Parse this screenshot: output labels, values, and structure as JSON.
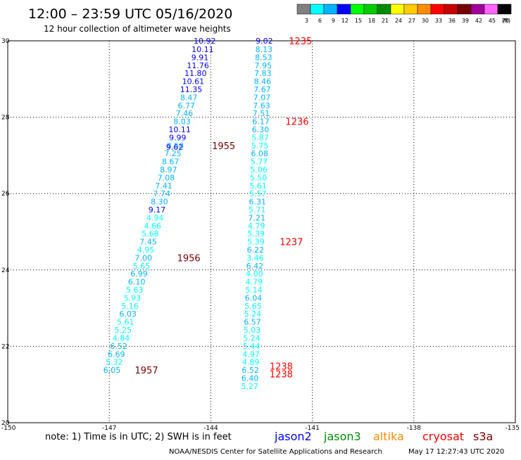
{
  "header": {
    "title": "12:00 – 23:59 UTC 05/16/2020",
    "subtitle": "12 hour collection of altimeter wave heights"
  },
  "legend": {
    "unit": "(ft)",
    "bins": [
      {
        "label": "3",
        "color": "#808080"
      },
      {
        "label": "6",
        "color": "#00ffff"
      },
      {
        "label": "9",
        "color": "#00b4ff"
      },
      {
        "label": "12",
        "color": "#0000ff"
      },
      {
        "label": "15",
        "color": "#00ff00"
      },
      {
        "label": "18",
        "color": "#00cc00"
      },
      {
        "label": "21",
        "color": "#008c00"
      },
      {
        "label": "24",
        "color": "#ffff00"
      },
      {
        "label": "27",
        "color": "#ffcc00"
      },
      {
        "label": "30",
        "color": "#ff8c00"
      },
      {
        "label": "33",
        "color": "#ff0000"
      },
      {
        "label": "36",
        "color": "#c80000"
      },
      {
        "label": "39",
        "color": "#780000"
      },
      {
        "label": "42",
        "color": "#a000a0"
      },
      {
        "label": "45",
        "color": "#ff64ff"
      },
      {
        "label": "70",
        "color": "#000000"
      }
    ]
  },
  "chart_data": {
    "type": "scatter",
    "xlim": [
      -150,
      -135
    ],
    "ylim": [
      20,
      30
    ],
    "x_ticks": [
      "-150",
      "-147",
      "-144",
      "-141",
      "-138",
      "-135"
    ],
    "y_ticks": [
      "20",
      "22",
      "24",
      "26",
      "28",
      "30"
    ],
    "grid": true,
    "tracks": [
      {
        "name": "track-west",
        "points": [
          {
            "lon": -144.18,
            "lat": 30.0,
            "value": "10.92",
            "color": "#0000ff"
          },
          {
            "lon": -144.24,
            "lat": 29.78,
            "value": "10.11",
            "color": "#0000ff"
          },
          {
            "lon": -144.32,
            "lat": 29.57,
            "value": "9.91",
            "color": "#0000ff"
          },
          {
            "lon": -144.38,
            "lat": 29.36,
            "value": "11.76",
            "color": "#0000ff"
          },
          {
            "lon": -144.45,
            "lat": 29.15,
            "value": "11.80",
            "color": "#0000ff"
          },
          {
            "lon": -144.52,
            "lat": 28.94,
            "value": "10.61",
            "color": "#0000ff"
          },
          {
            "lon": -144.58,
            "lat": 28.73,
            "value": "11.35",
            "color": "#0000ff"
          },
          {
            "lon": -144.65,
            "lat": 28.52,
            "value": "8.47",
            "color": "#00b4ff"
          },
          {
            "lon": -144.72,
            "lat": 28.31,
            "value": "6.77",
            "color": "#00b4ff"
          },
          {
            "lon": -144.78,
            "lat": 28.1,
            "value": "7.46",
            "color": "#00b4ff"
          },
          {
            "lon": -144.85,
            "lat": 27.89,
            "value": "8.03",
            "color": "#00b4ff"
          },
          {
            "lon": -144.92,
            "lat": 27.68,
            "value": "10.11",
            "color": "#0000ff"
          },
          {
            "lon": -144.98,
            "lat": 27.47,
            "value": "9.99",
            "color": "#0000ff"
          },
          {
            "lon": -145.05,
            "lat": 27.26,
            "value": "8.58",
            "color": "#00b4ff"
          },
          {
            "lon": -145.07,
            "lat": 27.22,
            "value": "9.62",
            "color": "#0000ff"
          },
          {
            "lon": -145.12,
            "lat": 27.05,
            "value": "7.25",
            "color": "#00b4ff"
          },
          {
            "lon": -145.19,
            "lat": 26.84,
            "value": "8.67",
            "color": "#00b4ff"
          },
          {
            "lon": -145.25,
            "lat": 26.63,
            "value": "8.97",
            "color": "#00b4ff"
          },
          {
            "lon": -145.32,
            "lat": 26.42,
            "value": "7.08",
            "color": "#00b4ff"
          },
          {
            "lon": -145.39,
            "lat": 26.21,
            "value": "7.41",
            "color": "#00b4ff"
          },
          {
            "lon": -145.45,
            "lat": 26.0,
            "value": "7.74",
            "color": "#00b4ff"
          },
          {
            "lon": -145.52,
            "lat": 25.79,
            "value": "8.30",
            "color": "#00b4ff"
          },
          {
            "lon": -145.59,
            "lat": 25.58,
            "value": "9.17",
            "color": "#0000ff"
          },
          {
            "lon": -145.65,
            "lat": 25.37,
            "value": "4.94",
            "color": "#00ffff"
          },
          {
            "lon": -145.72,
            "lat": 25.16,
            "value": "4.66",
            "color": "#00ffff"
          },
          {
            "lon": -145.79,
            "lat": 24.95,
            "value": "5.68",
            "color": "#00ffff"
          },
          {
            "lon": -145.85,
            "lat": 24.74,
            "value": "7.45",
            "color": "#00b4ff"
          },
          {
            "lon": -145.92,
            "lat": 24.53,
            "value": "4.95",
            "color": "#00ffff"
          },
          {
            "lon": -145.99,
            "lat": 24.32,
            "value": "7.00",
            "color": "#00b4ff"
          },
          {
            "lon": -146.05,
            "lat": 24.11,
            "value": "5.65",
            "color": "#00ffff"
          },
          {
            "lon": -146.12,
            "lat": 23.9,
            "value": "6.99",
            "color": "#00b4ff"
          },
          {
            "lon": -146.19,
            "lat": 23.69,
            "value": "6.10",
            "color": "#00b4ff"
          },
          {
            "lon": -146.25,
            "lat": 23.48,
            "value": "5.63",
            "color": "#00ffff"
          },
          {
            "lon": -146.32,
            "lat": 23.27,
            "value": "5.93",
            "color": "#00ffff"
          },
          {
            "lon": -146.39,
            "lat": 23.06,
            "value": "5.16",
            "color": "#00ffff"
          },
          {
            "lon": -146.45,
            "lat": 22.85,
            "value": "6.03",
            "color": "#00b4ff"
          },
          {
            "lon": -146.52,
            "lat": 22.64,
            "value": "5.61",
            "color": "#00ffff"
          },
          {
            "lon": -146.59,
            "lat": 22.43,
            "value": "5.25",
            "color": "#00ffff"
          },
          {
            "lon": -146.65,
            "lat": 22.22,
            "value": "4.84",
            "color": "#00ffff"
          },
          {
            "lon": -146.72,
            "lat": 22.01,
            "value": "6.52",
            "color": "#00b4ff"
          },
          {
            "lon": -146.79,
            "lat": 21.8,
            "value": "6.69",
            "color": "#00b4ff"
          },
          {
            "lon": -146.85,
            "lat": 21.59,
            "value": "5.32",
            "color": "#00ffff"
          },
          {
            "lon": -146.92,
            "lat": 21.38,
            "value": "6.05",
            "color": "#00b4ff"
          }
        ]
      },
      {
        "name": "track-east",
        "points": [
          {
            "lon": -142.42,
            "lat": 30.0,
            "value": "9.02",
            "color": "#0000ff"
          },
          {
            "lon": -142.43,
            "lat": 29.78,
            "value": "8.13",
            "color": "#00b4ff"
          },
          {
            "lon": -142.44,
            "lat": 29.57,
            "value": "8.53",
            "color": "#00b4ff"
          },
          {
            "lon": -142.45,
            "lat": 29.36,
            "value": "7.95",
            "color": "#00b4ff"
          },
          {
            "lon": -142.46,
            "lat": 29.15,
            "value": "7.83",
            "color": "#00b4ff"
          },
          {
            "lon": -142.47,
            "lat": 28.94,
            "value": "8.46",
            "color": "#00b4ff"
          },
          {
            "lon": -142.48,
            "lat": 28.73,
            "value": "7.67",
            "color": "#00b4ff"
          },
          {
            "lon": -142.49,
            "lat": 28.52,
            "value": "7.07",
            "color": "#00b4ff"
          },
          {
            "lon": -142.5,
            "lat": 28.31,
            "value": "7.63",
            "color": "#00b4ff"
          },
          {
            "lon": -142.51,
            "lat": 28.1,
            "value": "7.51",
            "color": "#00b4ff"
          },
          {
            "lon": -142.52,
            "lat": 27.89,
            "value": "6.17",
            "color": "#00b4ff"
          },
          {
            "lon": -142.53,
            "lat": 27.68,
            "value": "6.30",
            "color": "#00b4ff"
          },
          {
            "lon": -142.54,
            "lat": 27.47,
            "value": "5.87",
            "color": "#00ffff"
          },
          {
            "lon": -142.55,
            "lat": 27.26,
            "value": "5.75",
            "color": "#00ffff"
          },
          {
            "lon": -142.56,
            "lat": 27.05,
            "value": "6.08",
            "color": "#00b4ff"
          },
          {
            "lon": -142.57,
            "lat": 26.84,
            "value": "5.77",
            "color": "#00ffff"
          },
          {
            "lon": -142.58,
            "lat": 26.63,
            "value": "5.06",
            "color": "#00ffff"
          },
          {
            "lon": -142.59,
            "lat": 26.42,
            "value": "5.50",
            "color": "#00ffff"
          },
          {
            "lon": -142.6,
            "lat": 26.21,
            "value": "5.61",
            "color": "#00ffff"
          },
          {
            "lon": -142.61,
            "lat": 26.0,
            "value": "5.57",
            "color": "#00ffff"
          },
          {
            "lon": -142.62,
            "lat": 25.79,
            "value": "6.31",
            "color": "#00b4ff"
          },
          {
            "lon": -142.63,
            "lat": 25.58,
            "value": "5.71",
            "color": "#00ffff"
          },
          {
            "lon": -142.64,
            "lat": 25.37,
            "value": "7.21",
            "color": "#00b4ff"
          },
          {
            "lon": -142.65,
            "lat": 25.16,
            "value": "4.79",
            "color": "#00ffff"
          },
          {
            "lon": -142.66,
            "lat": 24.95,
            "value": "5.39",
            "color": "#00ffff"
          },
          {
            "lon": -142.67,
            "lat": 24.74,
            "value": "5.39",
            "color": "#00ffff"
          },
          {
            "lon": -142.68,
            "lat": 24.53,
            "value": "6.22",
            "color": "#00b4ff"
          },
          {
            "lon": -142.69,
            "lat": 24.32,
            "value": "3.46",
            "color": "#00ffff"
          },
          {
            "lon": -142.7,
            "lat": 24.11,
            "value": "6.42",
            "color": "#00b4ff"
          },
          {
            "lon": -142.71,
            "lat": 23.9,
            "value": "4.00",
            "color": "#00ffff"
          },
          {
            "lon": -142.72,
            "lat": 23.69,
            "value": "4.79",
            "color": "#00ffff"
          },
          {
            "lon": -142.73,
            "lat": 23.48,
            "value": "5.14",
            "color": "#00ffff"
          },
          {
            "lon": -142.74,
            "lat": 23.27,
            "value": "6.04",
            "color": "#00b4ff"
          },
          {
            "lon": -142.75,
            "lat": 23.06,
            "value": "5.65",
            "color": "#00ffff"
          },
          {
            "lon": -142.76,
            "lat": 22.85,
            "value": "5.24",
            "color": "#00ffff"
          },
          {
            "lon": -142.77,
            "lat": 22.64,
            "value": "6.57",
            "color": "#00b4ff"
          },
          {
            "lon": -142.78,
            "lat": 22.43,
            "value": "5.03",
            "color": "#00ffff"
          },
          {
            "lon": -142.79,
            "lat": 22.22,
            "value": "5.24",
            "color": "#00ffff"
          },
          {
            "lon": -142.8,
            "lat": 22.01,
            "value": "5.44",
            "color": "#00ffff"
          },
          {
            "lon": -142.81,
            "lat": 21.8,
            "value": "4.97",
            "color": "#00ffff"
          },
          {
            "lon": -142.82,
            "lat": 21.59,
            "value": "4.89",
            "color": "#00ffff"
          },
          {
            "lon": -142.83,
            "lat": 21.38,
            "value": "6.52",
            "color": "#00b4ff"
          },
          {
            "lon": -142.84,
            "lat": 21.17,
            "value": "6.40",
            "color": "#00b4ff"
          },
          {
            "lon": -142.85,
            "lat": 20.96,
            "value": "5.27",
            "color": "#00ffff"
          }
        ]
      }
    ],
    "time_labels": [
      {
        "text": "1235",
        "lon": -141.35,
        "lat": 30.0,
        "color": "#ff0000"
      },
      {
        "text": "1236",
        "lon": -141.45,
        "lat": 27.89,
        "color": "#ff0000"
      },
      {
        "text": "1237",
        "lon": -141.62,
        "lat": 24.74,
        "color": "#ff0000"
      },
      {
        "text": "1238",
        "lon": -141.92,
        "lat": 21.48,
        "color": "#ff0000"
      },
      {
        "text": "1238",
        "lon": -141.92,
        "lat": 21.28,
        "color": "#ff0000"
      },
      {
        "text": "1955",
        "lon": -143.62,
        "lat": 27.26,
        "color": "#780000"
      },
      {
        "text": "1956",
        "lon": -144.65,
        "lat": 24.32,
        "color": "#780000"
      },
      {
        "text": "1957",
        "lon": -145.9,
        "lat": 21.38,
        "color": "#780000"
      }
    ]
  },
  "footer": {
    "note": "note:  1) Time is in UTC; 2) SWH is in feet",
    "satellites": [
      {
        "label": "jason2",
        "color": "#0000ff"
      },
      {
        "label": "jason3",
        "color": "#008c00"
      },
      {
        "label": "altika",
        "color": "#ff8c00"
      },
      {
        "label": "cryosat",
        "color": "#ff0000"
      },
      {
        "label": "s3a",
        "color": "#780000"
      }
    ],
    "credit": "NOAA/NESDIS Center for Satellite Applications and Research",
    "timestamp": "May 17 12:27:43 UTC 2020"
  }
}
